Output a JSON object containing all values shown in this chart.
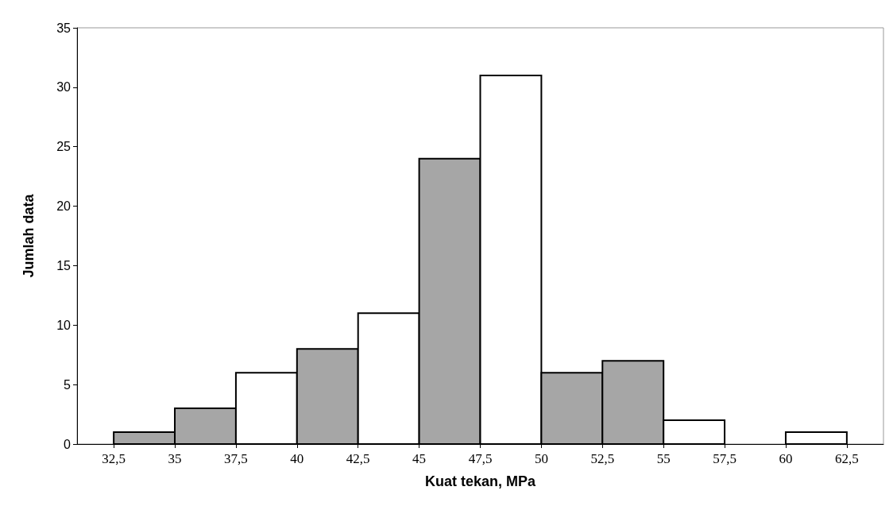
{
  "chart_data": {
    "type": "histogram",
    "xlabel": "Kuat tekan, MPa",
    "ylabel": "Jumlah data",
    "bins": [
      32.5,
      35,
      37.5,
      40,
      42.5,
      45,
      47.5,
      50,
      52.5,
      55,
      57.5,
      60,
      62.5
    ],
    "values": [
      1,
      3,
      6,
      8,
      11,
      24,
      31,
      6,
      7,
      2,
      0,
      1
    ],
    "colors": [
      "#a6a6a6",
      "#a6a6a6",
      "#ffffff",
      "#a6a6a6",
      "#ffffff",
      "#a6a6a6",
      "#ffffff",
      "#a6a6a6",
      "#a6a6a6",
      "#ffffff",
      "#ffffff",
      "#ffffff"
    ],
    "xlim": [
      31,
      64
    ],
    "xticks": [
      {
        "value": 32.5,
        "label": "32,5"
      },
      35,
      {
        "value": 37.5,
        "label": "37,5"
      },
      40,
      {
        "value": 42.5,
        "label": "42,5"
      },
      45,
      {
        "value": 47.5,
        "label": "47,5"
      },
      50,
      {
        "value": 52.5,
        "label": "52,5"
      },
      55,
      {
        "value": 57.5,
        "label": "57,5"
      },
      60,
      {
        "value": 62.5,
        "label": "62,5"
      }
    ],
    "ylim": [
      0,
      35
    ],
    "yticks": [
      0,
      5,
      10,
      15,
      20,
      25,
      30,
      35
    ],
    "grid": false
  }
}
